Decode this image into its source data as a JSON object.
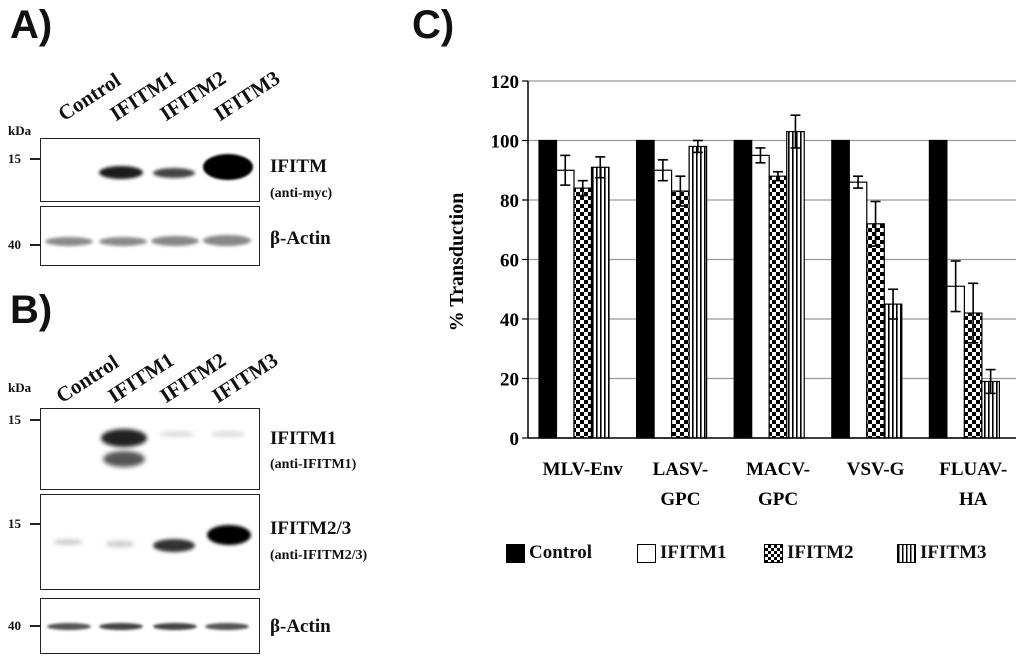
{
  "panel_a": {
    "letter": "A)",
    "kda_label": "kDa",
    "lanes": [
      "Control",
      "IFITM1",
      "IFITM2",
      "IFITM3"
    ],
    "blots": [
      {
        "marker": "15",
        "antibody": "IFITM",
        "detail": "(anti-myc)"
      },
      {
        "marker": "40",
        "antibody": "β-Actin",
        "detail": ""
      }
    ]
  },
  "panel_b": {
    "letter": "B)",
    "kda_label": "kDa",
    "lanes": [
      "Control",
      "IFITM1",
      "IFITM2",
      "IFITM3"
    ],
    "blots": [
      {
        "marker": "15",
        "antibody": "IFITM1",
        "detail": "(anti-IFITM1)"
      },
      {
        "marker": "15",
        "antibody": "IFITM2/3",
        "detail": "(anti-IFITM2/3)"
      },
      {
        "marker": "40",
        "antibody": "β-Actin",
        "detail": ""
      }
    ]
  },
  "panel_c": {
    "letter": "C)"
  },
  "chart_data": {
    "type": "bar",
    "ylabel": "% Transduction",
    "ylim": [
      0,
      120
    ],
    "yticks": [
      0,
      20,
      40,
      60,
      80,
      100,
      120
    ],
    "grid": true,
    "legend_position": "bottom",
    "categories": [
      "MLV-Env",
      "LASV-\nGPC",
      "MACV-\nGPC",
      "VSV-G",
      "FLUAV-\nHA"
    ],
    "series": [
      {
        "name": "Control",
        "pattern": "solid-black",
        "values": [
          100,
          100,
          100,
          100,
          100
        ],
        "errors": [
          0,
          0,
          0,
          0,
          0
        ]
      },
      {
        "name": "IFITM1",
        "pattern": "white",
        "values": [
          90,
          90,
          95,
          86,
          51
        ],
        "errors": [
          5,
          3.5,
          2.5,
          2,
          8.5
        ]
      },
      {
        "name": "IFITM2",
        "pattern": "checkerboard",
        "values": [
          84,
          83,
          88,
          72,
          42
        ],
        "errors": [
          2.5,
          5,
          1.5,
          7.5,
          10
        ]
      },
      {
        "name": "IFITM3",
        "pattern": "vertical-stripes",
        "values": [
          91,
          98,
          103,
          45,
          19
        ],
        "errors": [
          3.5,
          2,
          5.5,
          5,
          4
        ]
      }
    ]
  },
  "colors": {
    "ink": "#111111",
    "grid": "#9a9a9a",
    "bar_fill": "#000000"
  }
}
